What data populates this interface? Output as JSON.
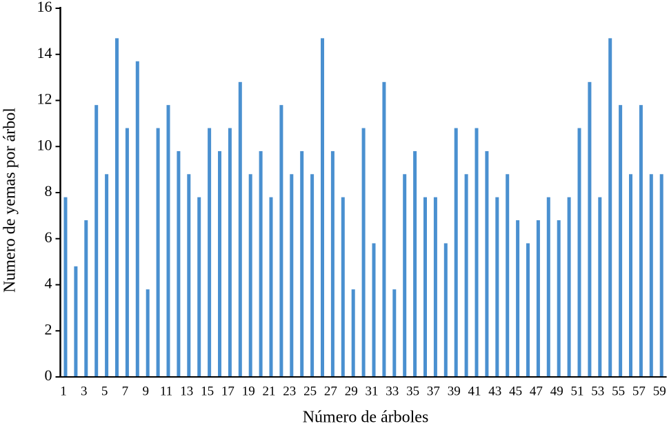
{
  "chart_data": {
    "type": "bar",
    "x_label": "Número de árboles",
    "y_label": "Numero de yemas por árbol",
    "categories": [
      "1",
      null,
      "3",
      null,
      "5",
      null,
      "7",
      null,
      "9",
      null,
      "11",
      null,
      "13",
      null,
      "15",
      null,
      "17",
      null,
      "19",
      null,
      "21",
      null,
      "23",
      null,
      "25",
      null,
      "27",
      null,
      "29",
      null,
      "31",
      null,
      "33",
      null,
      "35",
      null,
      "37",
      null,
      "39",
      null,
      "41",
      null,
      "43",
      null,
      "45",
      null,
      "47",
      null,
      "49",
      null,
      "51",
      null,
      "53",
      null,
      "55",
      null,
      "57",
      null,
      "59"
    ],
    "values": [
      7.8,
      4.8,
      6.8,
      11.8,
      8.8,
      14.7,
      10.8,
      13.7,
      3.8,
      10.8,
      11.8,
      9.8,
      8.8,
      7.8,
      10.8,
      9.8,
      10.8,
      12.8,
      8.8,
      9.8,
      7.8,
      11.8,
      8.8,
      9.8,
      8.8,
      14.7,
      9.8,
      7.8,
      3.8,
      10.8,
      5.8,
      12.8,
      3.8,
      8.8,
      9.8,
      7.8,
      7.8,
      5.8,
      10.8,
      8.8,
      10.8,
      9.8,
      7.8,
      8.8,
      6.8,
      5.8,
      6.8,
      7.8,
      6.8,
      7.8,
      10.8,
      12.8,
      7.8,
      14.7,
      11.8,
      8.8,
      11.8,
      8.8,
      8.8
    ],
    "color": "#4a90d0",
    "ylim": [
      0,
      16
    ],
    "yticks": [
      0,
      2,
      4,
      6,
      8,
      10,
      12,
      14,
      16
    ]
  }
}
